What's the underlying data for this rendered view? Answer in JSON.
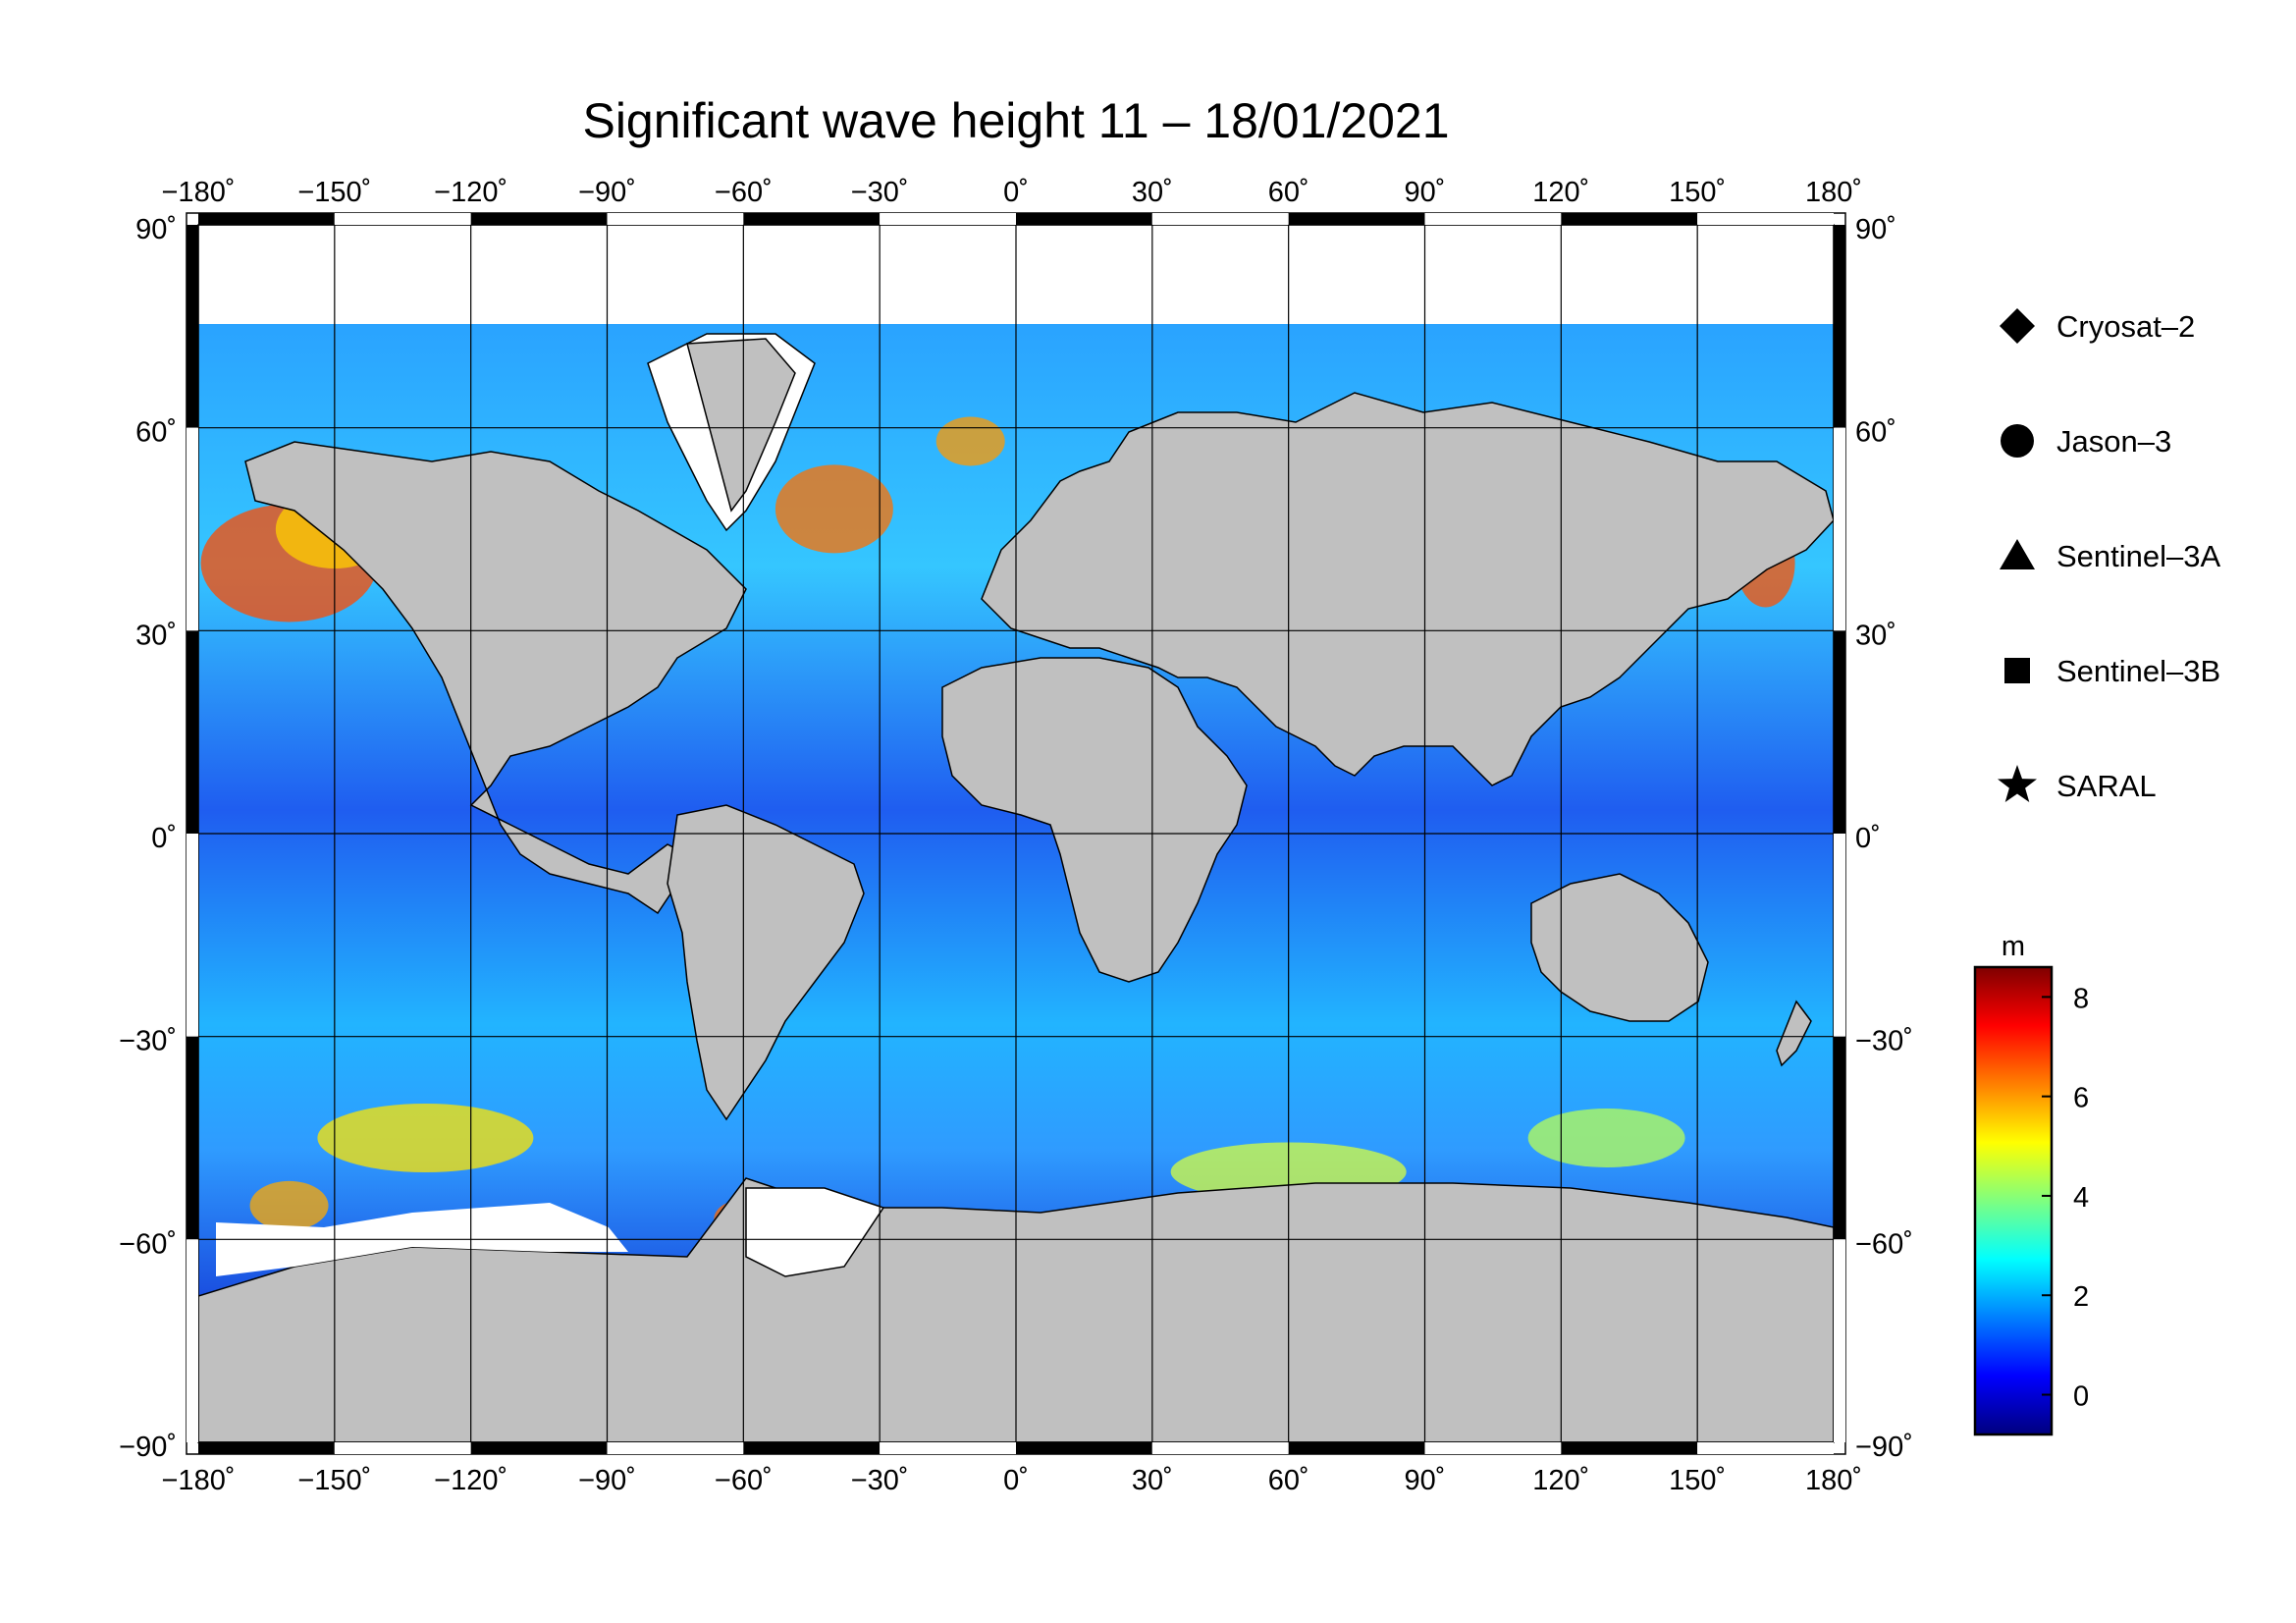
{
  "title": "Significant wave height 11 – 18/01/2021",
  "map": {
    "lon_range": [
      -180,
      180
    ],
    "lat_range": [
      -90,
      90
    ],
    "lon_ticks": [
      -180,
      -150,
      -120,
      -90,
      -60,
      -30,
      0,
      30,
      60,
      90,
      120,
      150,
      180
    ],
    "lat_ticks": [
      90,
      60,
      30,
      0,
      -30,
      -60,
      -90
    ],
    "lon_tick_labels": [
      "−180˚",
      "−150˚",
      "−120˚",
      "−90˚",
      "−60˚",
      "−30˚",
      "0˚",
      "30˚",
      "60˚",
      "90˚",
      "120˚",
      "150˚",
      "180˚"
    ],
    "lat_tick_labels": [
      "90˚",
      "60˚",
      "30˚",
      "0˚",
      "−30˚",
      "−60˚",
      "−90˚"
    ],
    "land_color": "#c0c0c0",
    "ice_color": "#ffffff",
    "grid": true
  },
  "legend": {
    "items": [
      {
        "label": "Cryosat–2",
        "symbol": "diamond"
      },
      {
        "label": "Jason–3",
        "symbol": "circle"
      },
      {
        "label": "Sentinel–3A",
        "symbol": "triangle"
      },
      {
        "label": "Sentinel–3B",
        "symbol": "square"
      },
      {
        "label": "SARAL",
        "symbol": "star"
      }
    ]
  },
  "colorbar": {
    "unit": "m",
    "min": -0.8,
    "max": 8.6,
    "ticks": [
      0,
      2,
      4,
      6,
      8
    ],
    "tick_labels": [
      "0",
      "2",
      "4",
      "6",
      "8"
    ],
    "colors": [
      "#00007f",
      "#0000ff",
      "#007fff",
      "#00ffff",
      "#7fff7f",
      "#ffff00",
      "#ff7f00",
      "#ff0000",
      "#7f0000"
    ]
  }
}
